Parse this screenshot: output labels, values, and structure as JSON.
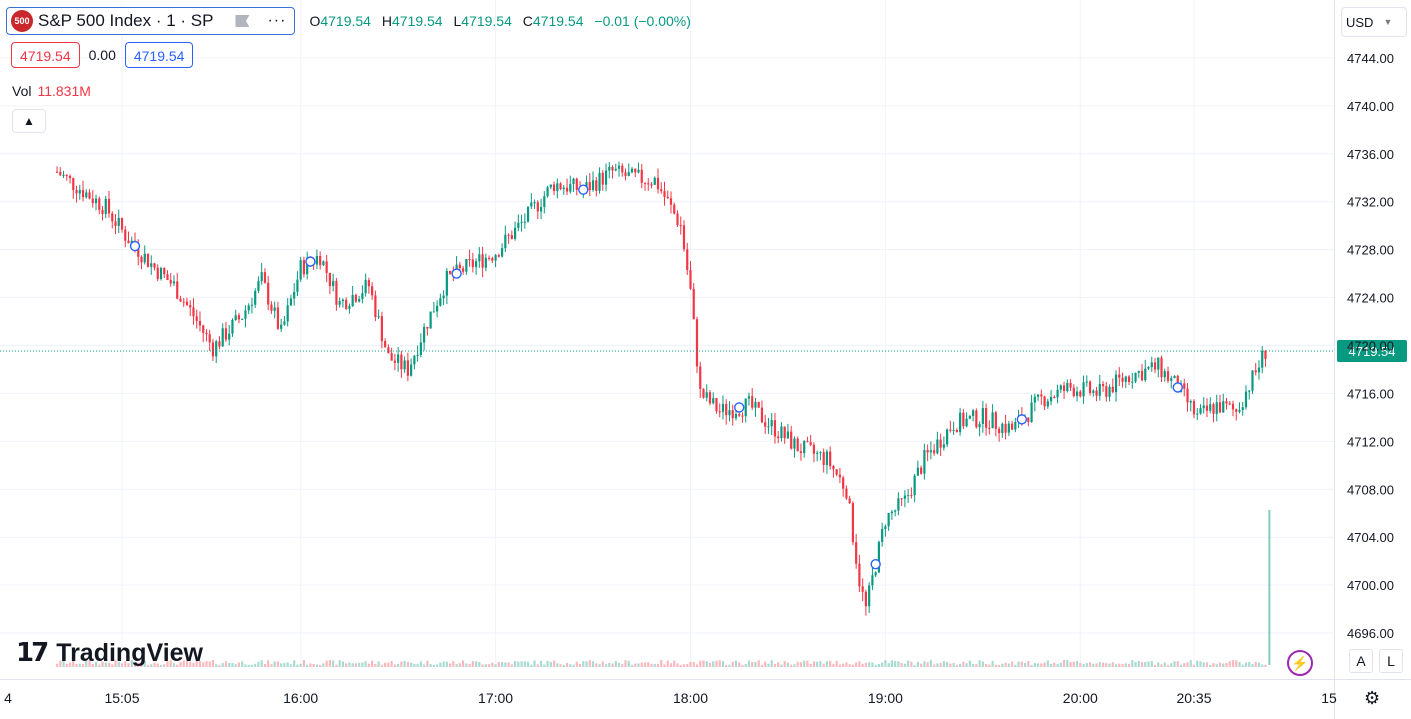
{
  "header": {
    "badge": "500",
    "title": "S&P 500 Index · 1 · SP",
    "more_icon": "···",
    "ohlc": {
      "o_label": "O",
      "o": "4719.54",
      "h_label": "H",
      "h": "4719.54",
      "l_label": "L",
      "l": "4719.54",
      "c_label": "C",
      "c": "4719.54",
      "change": "−0.01 (−0.00%)"
    },
    "sell_price": "4719.54",
    "spread": "0.00",
    "buy_price": "4719.54",
    "volume_label": "Vol",
    "volume_value": "11.831M",
    "collapse_icon": "chevron-up-icon"
  },
  "currency": "USD",
  "logo": {
    "mark": "17",
    "text": "TradingView"
  },
  "buttons": {
    "auto_scale": "A",
    "log_scale": "L"
  },
  "colors": {
    "up": "#089981",
    "down": "#f23645",
    "badge": "#c9282d",
    "price_line": "#089981",
    "grid": "#f0f3fa",
    "text": "#131722"
  },
  "chart_data": {
    "type": "candlestick",
    "x_ticks": [
      "4",
      "15:05",
      "16:00",
      "17:00",
      "18:00",
      "19:00",
      "20:00",
      "20:35",
      "15"
    ],
    "y_ticks": [
      4696,
      4700,
      4704,
      4708,
      4712,
      4716,
      4720,
      4724,
      4728,
      4732,
      4736,
      4740,
      4744
    ],
    "ylim": [
      4693.5,
      4748
    ],
    "last_price": "4719.54",
    "grid": true,
    "path": [
      [
        14.75,
        4734.5
      ],
      [
        15.0,
        4731.5
      ],
      [
        15.1,
        4729.2
      ],
      [
        15.25,
        4726.5
      ],
      [
        15.35,
        4725.0
      ],
      [
        15.45,
        4722.5
      ],
      [
        15.55,
        4719.8
      ],
      [
        15.7,
        4722.5
      ],
      [
        15.8,
        4725.5
      ],
      [
        15.9,
        4721.0
      ],
      [
        16.0,
        4726.5
      ],
      [
        16.1,
        4727.5
      ],
      [
        16.2,
        4723.5
      ],
      [
        16.35,
        4725.0
      ],
      [
        16.45,
        4719.0
      ],
      [
        16.55,
        4718.0
      ],
      [
        16.65,
        4722.0
      ],
      [
        16.75,
        4725.5
      ],
      [
        16.85,
        4726.5
      ],
      [
        17.0,
        4727.8
      ],
      [
        17.15,
        4730.5
      ],
      [
        17.3,
        4733.5
      ],
      [
        17.45,
        4733.0
      ],
      [
        17.6,
        4734.5
      ],
      [
        17.7,
        4734.0
      ],
      [
        17.82,
        4733.8
      ],
      [
        17.95,
        4730.0
      ],
      [
        18.0,
        4724.5
      ],
      [
        18.05,
        4716.0
      ],
      [
        18.15,
        4714.5
      ],
      [
        18.3,
        4715.0
      ],
      [
        18.4,
        4713.5
      ],
      [
        18.55,
        4711.5
      ],
      [
        18.7,
        4710.5
      ],
      [
        18.8,
        4708.0
      ],
      [
        18.87,
        4700.0
      ],
      [
        18.9,
        4698.0
      ],
      [
        19.0,
        4705.5
      ],
      [
        19.1,
        4707.0
      ],
      [
        19.2,
        4710.5
      ],
      [
        19.35,
        4713.5
      ],
      [
        19.5,
        4714.0
      ],
      [
        19.65,
        4713.0
      ],
      [
        19.8,
        4715.5
      ],
      [
        19.95,
        4716.5
      ],
      [
        20.1,
        4716.0
      ],
      [
        20.25,
        4717.5
      ],
      [
        20.4,
        4718.2
      ],
      [
        20.5,
        4716.5
      ],
      [
        20.6,
        4714.0
      ],
      [
        20.7,
        4715.0
      ],
      [
        20.8,
        4714.5
      ],
      [
        20.9,
        4717.8
      ],
      [
        20.95,
        4719.54
      ]
    ],
    "session_start": 14.75,
    "session_end": 20.95,
    "volume_spike": {
      "x": 20.97,
      "value": 11.831
    }
  }
}
